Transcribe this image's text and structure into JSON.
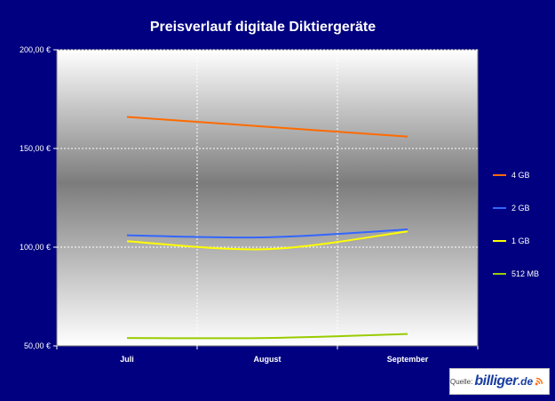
{
  "chart_data": {
    "type": "line",
    "title": "Preisverlauf digitale Diktiergeräte",
    "categories": [
      "Juli",
      "August",
      "September"
    ],
    "ylim": [
      50,
      200
    ],
    "yticks": [
      50,
      100,
      150,
      200
    ],
    "ytick_labels": [
      "50,00 €",
      "100,00 €",
      "150,00 €",
      "200,00 €"
    ],
    "grid": true,
    "legend_position": "right",
    "series": [
      {
        "name": "4 GB",
        "values": [
          166,
          161,
          156
        ],
        "color": "#ff6a00"
      },
      {
        "name": "2 GB",
        "values": [
          106,
          105,
          109
        ],
        "color": "#3366ff"
      },
      {
        "name": "1 GB",
        "values": [
          103,
          99,
          108
        ],
        "color": "#ffff00"
      },
      {
        "name": "512 MB",
        "values": [
          54,
          54,
          56
        ],
        "color": "#99cc00"
      }
    ]
  },
  "watermark": {
    "prefix": "Quelle:",
    "brand": "billiger",
    "tld": ".de"
  }
}
